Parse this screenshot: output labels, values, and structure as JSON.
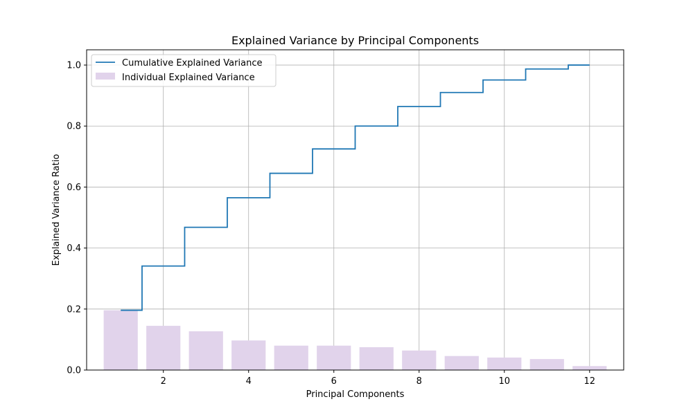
{
  "chart_data": {
    "type": "bar",
    "title": "Explained Variance by Principal Components",
    "xlabel": "Principal Components",
    "ylabel": "Explained Variance Ratio",
    "x": [
      1,
      2,
      3,
      4,
      5,
      6,
      7,
      8,
      9,
      10,
      11,
      12
    ],
    "xlim": [
      0.2,
      12.8
    ],
    "ylim": [
      0,
      1.05
    ],
    "xticks": [
      2,
      4,
      6,
      8,
      10,
      12
    ],
    "yticks": [
      0.0,
      0.2,
      0.4,
      0.6,
      0.8,
      1.0
    ],
    "xtick_labels": [
      "2",
      "4",
      "6",
      "8",
      "10",
      "12"
    ],
    "ytick_labels": [
      "0.0",
      "0.2",
      "0.4",
      "0.6",
      "0.8",
      "1.0"
    ],
    "grid": true,
    "legend_position": "top-left",
    "series": [
      {
        "name": "Cumulative Explained Variance",
        "kind": "step",
        "color": "#1f77b4",
        "values": [
          0.196,
          0.341,
          0.468,
          0.565,
          0.645,
          0.725,
          0.8,
          0.864,
          0.91,
          0.951,
          0.987,
          1.0
        ]
      },
      {
        "name": "Individual Explained Variance",
        "kind": "bar",
        "color": "#e1d3eb",
        "values": [
          0.196,
          0.145,
          0.127,
          0.097,
          0.08,
          0.08,
          0.075,
          0.064,
          0.046,
          0.041,
          0.036,
          0.013
        ]
      }
    ]
  }
}
